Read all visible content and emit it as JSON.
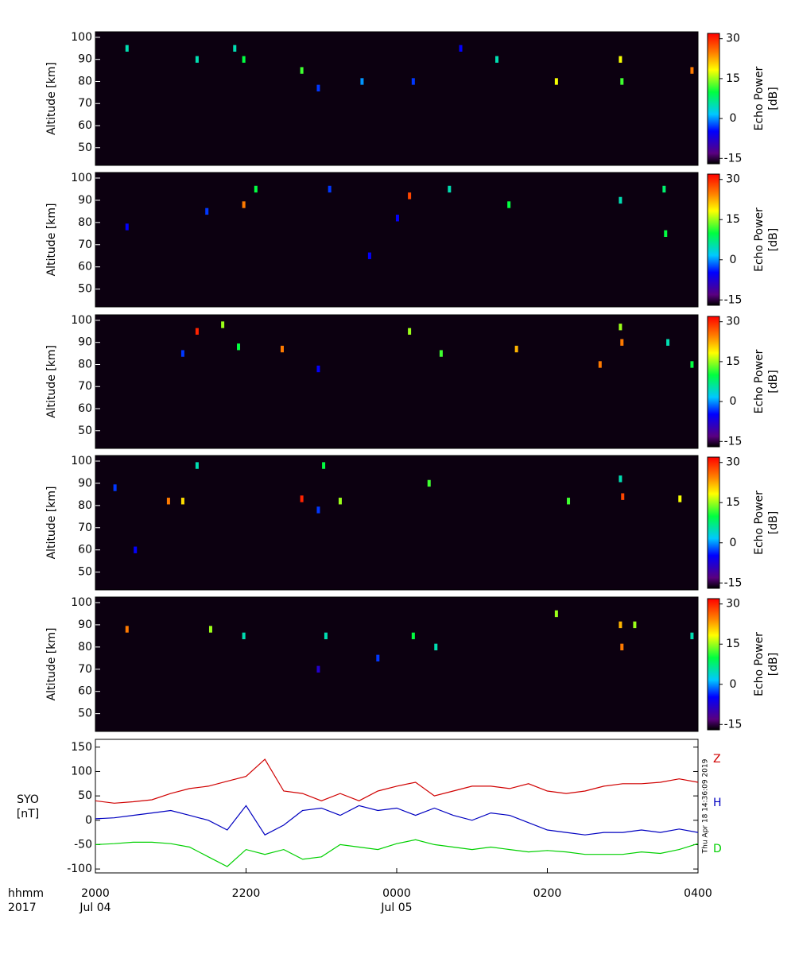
{
  "chart_data": [
    {
      "type": "heatmap",
      "ylabel": "Altitude [km]",
      "colorbar_label": [
        "Echo Power",
        "[dB]"
      ],
      "xlim": [
        20,
        28
      ],
      "ylim": [
        42,
        102.5
      ],
      "yticks": [
        50,
        60,
        70,
        80,
        90,
        100
      ],
      "clim": [
        -17,
        32
      ],
      "cticks": [
        -15,
        0,
        15,
        30
      ],
      "x": [
        20.42,
        21.35,
        21.85,
        21.97,
        22.74,
        22.96,
        23.54,
        24.22,
        25.33,
        26.12,
        26.97,
        26.99,
        27.92,
        24.85
      ],
      "y": [
        95,
        90,
        95,
        90,
        85,
        77,
        80,
        80,
        90,
        80,
        90,
        80,
        85,
        95
      ],
      "values": [
        5,
        5,
        5,
        10,
        12,
        -3,
        0,
        -3,
        5,
        18,
        18,
        12,
        25,
        -5
      ]
    },
    {
      "type": "heatmap",
      "ylabel": "Altitude [km]",
      "colorbar_label": [
        "Echo Power",
        "[dB]"
      ],
      "xlim": [
        20,
        28
      ],
      "ylim": [
        42,
        102.5
      ],
      "yticks": [
        50,
        60,
        70,
        80,
        90,
        100
      ],
      "clim": [
        -17,
        32
      ],
      "cticks": [
        -15,
        0,
        15,
        30
      ],
      "x": [
        21.97,
        22.13,
        24.01,
        24.17,
        23.64,
        25.49,
        26.97,
        27.55,
        27.57,
        20.42,
        23.11,
        24.7,
        21.48
      ],
      "y": [
        88,
        95,
        82,
        92,
        65,
        88,
        90,
        95,
        75,
        78,
        95,
        95,
        85
      ],
      "values": [
        25,
        10,
        -5,
        28,
        -5,
        10,
        5,
        8,
        10,
        -5,
        -3,
        5,
        -3
      ]
    },
    {
      "type": "heatmap",
      "ylabel": "Altitude [km]",
      "colorbar_label": [
        "Echo Power",
        "[dB]"
      ],
      "xlim": [
        20,
        28
      ],
      "ylim": [
        42,
        102.5
      ],
      "yticks": [
        50,
        60,
        70,
        80,
        90,
        100
      ],
      "clim": [
        -17,
        32
      ],
      "cticks": [
        -15,
        0,
        15,
        30
      ],
      "x": [
        21.35,
        21.69,
        21.9,
        22.96,
        24.17,
        24.59,
        25.59,
        26.97,
        26.99,
        26.7,
        21.16,
        22.48,
        27.6,
        27.92
      ],
      "y": [
        95,
        98,
        88,
        78,
        95,
        85,
        87,
        97,
        90,
        80,
        85,
        87,
        90,
        80
      ],
      "values": [
        30,
        15,
        10,
        -5,
        15,
        12,
        22,
        15,
        25,
        25,
        -3,
        25,
        5,
        10
      ]
    },
    {
      "type": "heatmap",
      "ylabel": "Altitude [km]",
      "colorbar_label": [
        "Echo Power",
        "[dB]"
      ],
      "xlim": [
        20,
        28
      ],
      "ylim": [
        42,
        102.5
      ],
      "yticks": [
        50,
        60,
        70,
        80,
        90,
        100
      ],
      "clim": [
        -17,
        32
      ],
      "cticks": [
        -15,
        0,
        15,
        30
      ],
      "x": [
        20.26,
        20.53,
        20.97,
        21.16,
        21.35,
        22.74,
        22.96,
        23.03,
        23.25,
        24.43,
        26.28,
        26.97,
        27.0,
        27.76
      ],
      "y": [
        88,
        60,
        82,
        82,
        98,
        83,
        78,
        98,
        82,
        90,
        82,
        92,
        84,
        83
      ],
      "values": [
        -3,
        -5,
        25,
        20,
        5,
        30,
        -3,
        10,
        15,
        12,
        12,
        5,
        28,
        18
      ]
    },
    {
      "type": "heatmap",
      "ylabel": "Altitude [km]",
      "colorbar_label": [
        "Echo Power",
        "[dB]"
      ],
      "xlim": [
        20,
        28
      ],
      "ylim": [
        42,
        102.5
      ],
      "yticks": [
        50,
        60,
        70,
        80,
        90,
        100
      ],
      "clim": [
        -17,
        32
      ],
      "cticks": [
        -15,
        0,
        15,
        30
      ],
      "x": [
        20.42,
        21.53,
        21.97,
        22.96,
        23.06,
        24.22,
        24.52,
        26.12,
        26.97,
        26.99,
        27.16,
        27.92,
        23.75
      ],
      "y": [
        88,
        88,
        85,
        70,
        85,
        85,
        80,
        95,
        90,
        80,
        90,
        85,
        75
      ],
      "values": [
        25,
        15,
        5,
        -8,
        5,
        10,
        5,
        15,
        22,
        25,
        15,
        5,
        -3
      ]
    },
    {
      "type": "line",
      "ylabel": [
        "SYO",
        "[nT]"
      ],
      "xlabel": "hhmm",
      "year_label": "2017",
      "timestamp": "Thu Apr 18 14:36:09 2019",
      "xlim": [
        20,
        28
      ],
      "ylim": [
        -108,
        166
      ],
      "yticks": [
        -100,
        -50,
        0,
        50,
        100,
        150
      ],
      "xticks": [
        {
          "value": 20,
          "label": "2000"
        },
        {
          "value": 22,
          "label": "2200"
        },
        {
          "value": 24,
          "label": "0000"
        },
        {
          "value": 26,
          "label": "0200"
        },
        {
          "value": 28,
          "label": "0400"
        }
      ],
      "date_labels": [
        {
          "value": 20,
          "label": "Jul 04"
        },
        {
          "value": 24,
          "label": "Jul 05"
        }
      ],
      "x": [
        20,
        20.25,
        20.5,
        20.75,
        21,
        21.25,
        21.5,
        21.75,
        22,
        22.25,
        22.5,
        22.75,
        23,
        23.25,
        23.5,
        23.75,
        24,
        24.25,
        24.5,
        24.75,
        25,
        25.25,
        25.5,
        25.75,
        26,
        26.25,
        26.5,
        26.75,
        27,
        27.25,
        27.5,
        27.75,
        28
      ],
      "series": [
        {
          "name": "Z",
          "color": "#d00000",
          "values": [
            40,
            35,
            38,
            42,
            55,
            65,
            70,
            80,
            90,
            125,
            60,
            55,
            40,
            55,
            40,
            60,
            70,
            78,
            50,
            60,
            70,
            70,
            65,
            75,
            60,
            55,
            60,
            70,
            75,
            75,
            78,
            85,
            78
          ]
        },
        {
          "name": "D",
          "color": "#00d000",
          "values": [
            -50,
            -48,
            -45,
            -45,
            -48,
            -55,
            -75,
            -95,
            -60,
            -70,
            -60,
            -80,
            -75,
            -50,
            -55,
            -60,
            -48,
            -40,
            -50,
            -55,
            -60,
            -55,
            -60,
            -65,
            -62,
            -65,
            -70,
            -70,
            -70,
            -65,
            -68,
            -60,
            -48
          ]
        },
        {
          "name": "H",
          "color": "#0000c0",
          "values": [
            3,
            5,
            10,
            15,
            20,
            10,
            0,
            -20,
            30,
            -30,
            -10,
            20,
            25,
            10,
            30,
            20,
            25,
            10,
            25,
            10,
            0,
            15,
            10,
            -5,
            -20,
            -25,
            -30,
            -25,
            -25,
            -20,
            -25,
            -18,
            -25
          ]
        }
      ]
    }
  ]
}
